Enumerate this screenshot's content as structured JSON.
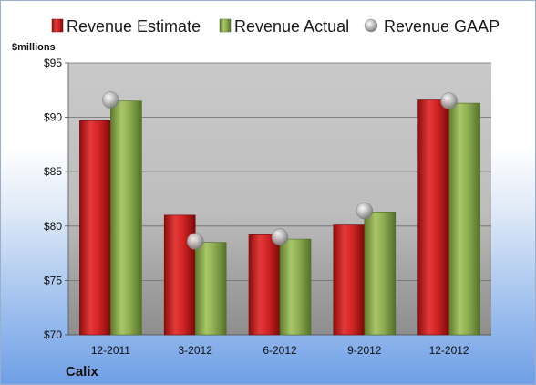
{
  "chart_data": {
    "type": "bar",
    "title": "",
    "ylabel": "$millions",
    "xlabel": "",
    "company": "Calix",
    "categories": [
      "12-2011",
      "3-2012",
      "6-2012",
      "9-2012",
      "12-2012"
    ],
    "series": [
      {
        "name": "Revenue Estimate",
        "kind": "bar",
        "color": "#cc1f1f",
        "values": [
          89.7,
          81.0,
          79.2,
          80.1,
          91.6
        ]
      },
      {
        "name": "Revenue Actual",
        "kind": "bar",
        "color": "#8aab4e",
        "values": [
          91.5,
          78.5,
          78.8,
          81.3,
          91.3
        ]
      },
      {
        "name": "Revenue GAAP",
        "kind": "marker",
        "color": "#b8b8b8",
        "values": [
          91.6,
          78.6,
          79.0,
          81.4,
          91.5
        ]
      }
    ],
    "ylim": [
      70,
      95
    ],
    "yticks": [
      "$70",
      "$75",
      "$80",
      "$85",
      "$90",
      "$95"
    ],
    "ytick_values": [
      70,
      75,
      80,
      85,
      90,
      95
    ],
    "grid": true,
    "legend_position": "top"
  }
}
